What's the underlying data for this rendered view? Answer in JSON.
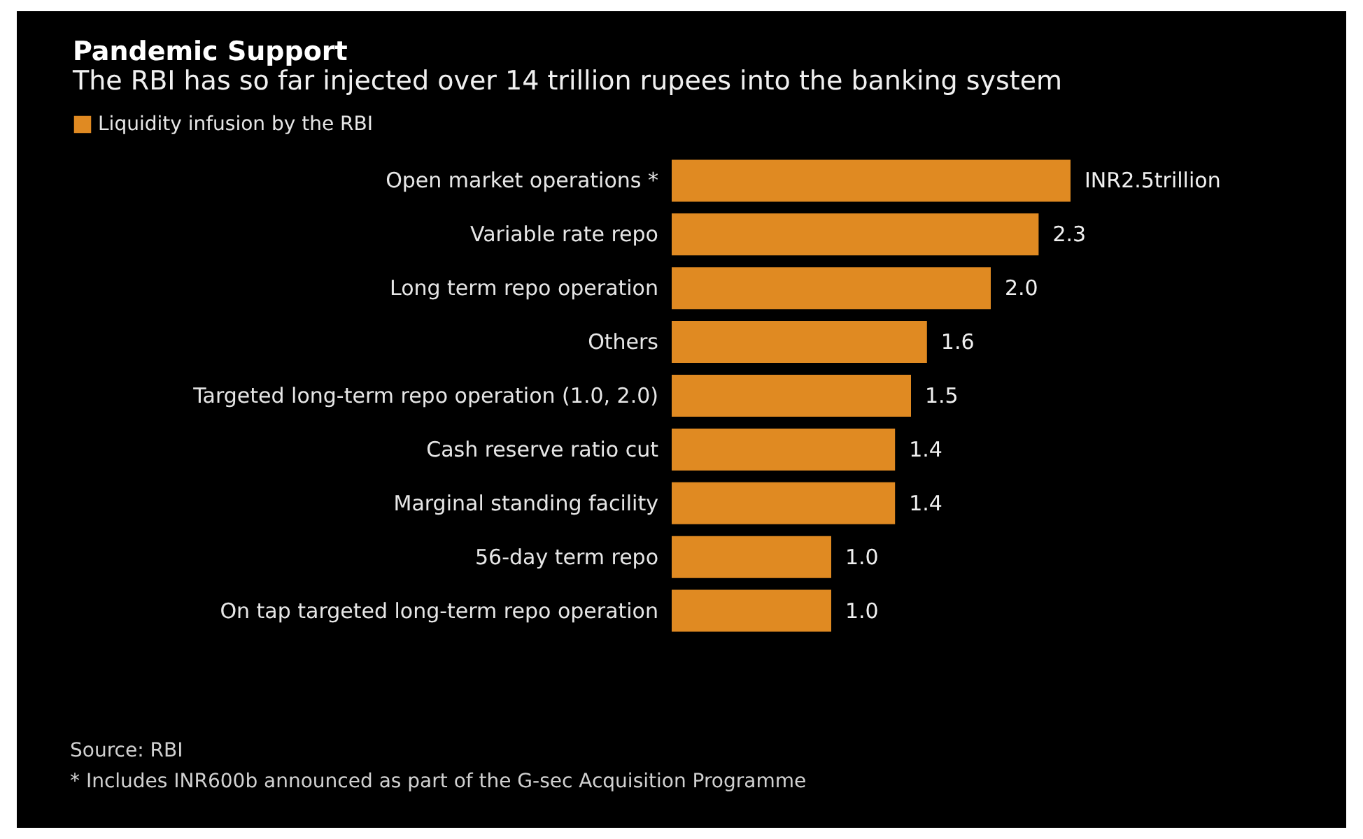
{
  "chart_data": {
    "type": "bar",
    "orientation": "horizontal",
    "title": "Pandemic Support",
    "subtitle": "The RBI has so far injected over 14 trillion rupees into the banking system",
    "categories": [
      "Open market operations *",
      "Variable rate repo",
      "Long term repo operation",
      "Others",
      "Targeted long-term repo operation (1.0, 2.0)",
      "Cash reserve ratio cut",
      "Marginal standing facility",
      "56-day term repo",
      "On tap targeted long-term repo operation"
    ],
    "series": [
      {
        "name": "Liquidity infusion by the RBI",
        "color": "#e08a22",
        "values": [
          2.5,
          2.3,
          2.0,
          1.6,
          1.5,
          1.4,
          1.4,
          1.0,
          1.0
        ],
        "value_labels": [
          "INR2.5trillion",
          "2.3",
          "2.0",
          "1.6",
          "1.5",
          "1.4",
          "1.4",
          "1.0",
          "1.0"
        ]
      }
    ],
    "legend": "top left",
    "grid": false,
    "annotations": [
      "Source: RBI",
      "* Includes INR600b announced as part of the G-sec Acquisition Programme"
    ]
  }
}
